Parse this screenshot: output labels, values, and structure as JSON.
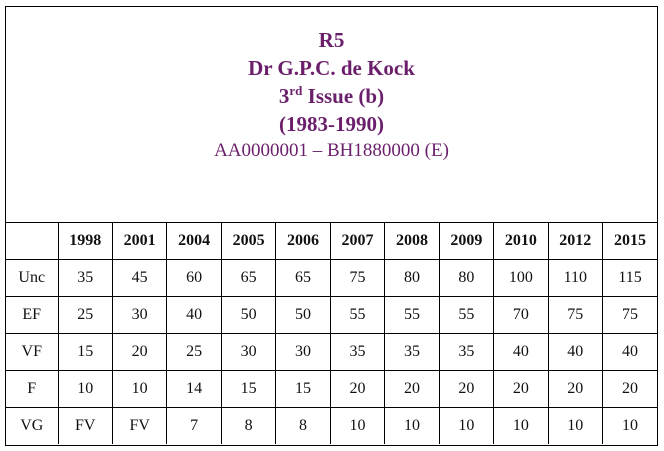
{
  "header": {
    "code": "R5",
    "name": "Dr G.P.C. de Kock",
    "issue_number": "3",
    "issue_suffix": "rd",
    "issue_rest": " Issue (b)",
    "period": "(1983-1990)",
    "serials": "AA0000001 – BH1880000 (E)"
  },
  "table": {
    "corner": "",
    "years": [
      "1998",
      "2001",
      "2004",
      "2005",
      "2006",
      "2007",
      "2008",
      "2009",
      "2010",
      "2012",
      "2015"
    ],
    "rows": [
      {
        "grade": "Unc",
        "values": [
          "35",
          "45",
          "60",
          "65",
          "65",
          "75",
          "80",
          "80",
          "100",
          "110",
          "115"
        ]
      },
      {
        "grade": "EF",
        "values": [
          "25",
          "30",
          "40",
          "50",
          "50",
          "55",
          "55",
          "55",
          "70",
          "75",
          "75"
        ]
      },
      {
        "grade": "VF",
        "values": [
          "15",
          "20",
          "25",
          "30",
          "30",
          "35",
          "35",
          "35",
          "40",
          "40",
          "40"
        ]
      },
      {
        "grade": "F",
        "values": [
          "10",
          "10",
          "14",
          "15",
          "15",
          "20",
          "20",
          "20",
          "20",
          "20",
          "20"
        ]
      },
      {
        "grade": "VG",
        "values": [
          "FV",
          "FV",
          "7",
          "8",
          "8",
          "10",
          "10",
          "10",
          "10",
          "10",
          "10"
        ]
      }
    ]
  }
}
